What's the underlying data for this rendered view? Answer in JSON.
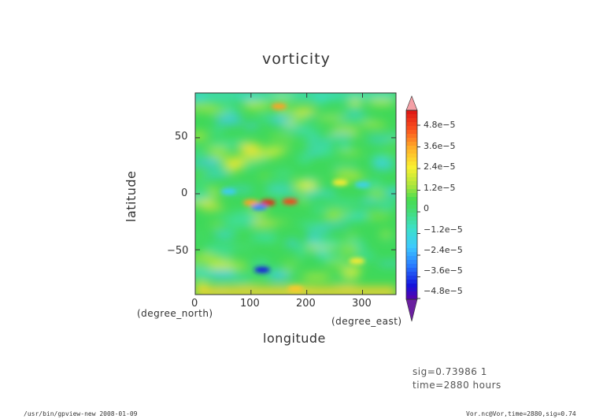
{
  "chart_data": {
    "type": "heatmap",
    "title": "vorticity",
    "xlabel": "longitude",
    "ylabel": "latitude",
    "x_unit": "(degree_east)",
    "y_unit": "(degree_north)",
    "xlim": [
      0,
      360
    ],
    "ylim": [
      -90,
      90
    ],
    "x_ticks": [
      0,
      100,
      200,
      300
    ],
    "y_ticks": [
      50,
      0,
      -50
    ],
    "x_tick_labels": [
      "0",
      "100",
      "200",
      "300"
    ],
    "y_tick_labels": [
      "50",
      "0",
      "−50"
    ],
    "colorbar": {
      "min": -4.8e-05,
      "max": 4.8e-05,
      "extend": "both",
      "tick_values": [
        4.8e-05,
        3.6e-05,
        2.4e-05,
        1.2e-05,
        0,
        -1.2e-05,
        -2.4e-05,
        -3.6e-05,
        -4.8e-05
      ],
      "tick_labels": [
        "4.8e−5",
        "3.6e−5",
        "2.4e−5",
        "1.2e−5",
        "0",
        "−1.2e−5",
        "−2.4e−5",
        "−3.6e−5",
        "−4.8e−5"
      ]
    },
    "grid": false,
    "features": [
      {
        "lon": 130,
        "lat": -8,
        "value": 4.5e-05
      },
      {
        "lon": 170,
        "lat": -7,
        "value": 4e-05
      },
      {
        "lon": 100,
        "lat": -8,
        "value": 3e-05
      },
      {
        "lon": 115,
        "lat": -12,
        "value": -3e-05
      },
      {
        "lon": 150,
        "lat": 78,
        "value": 3e-05
      },
      {
        "lon": 120,
        "lat": -68,
        "value": -4e-05
      },
      {
        "lon": 290,
        "lat": -60,
        "value": 2e-05
      },
      {
        "lon": 180,
        "lat": -85,
        "value": 2.5e-05
      },
      {
        "lon": 60,
        "lat": 2,
        "value": -2e-05
      },
      {
        "lon": 260,
        "lat": 10,
        "value": 2e-05
      },
      {
        "lon": 300,
        "lat": 8,
        "value": -1.8e-05
      }
    ]
  },
  "info": {
    "line1": "sig=0.73986  1",
    "line2": "time=2880  hours"
  },
  "footer": {
    "left": "/usr/bin/gpview-new  2008-01-09",
    "right": "Vor.nc@Vor,time=2880,sig=0.74"
  },
  "colors": {
    "background_field": "#3fd85a",
    "max_arrow": "#f4a0a6",
    "min_arrow": "#6a1fa0"
  }
}
